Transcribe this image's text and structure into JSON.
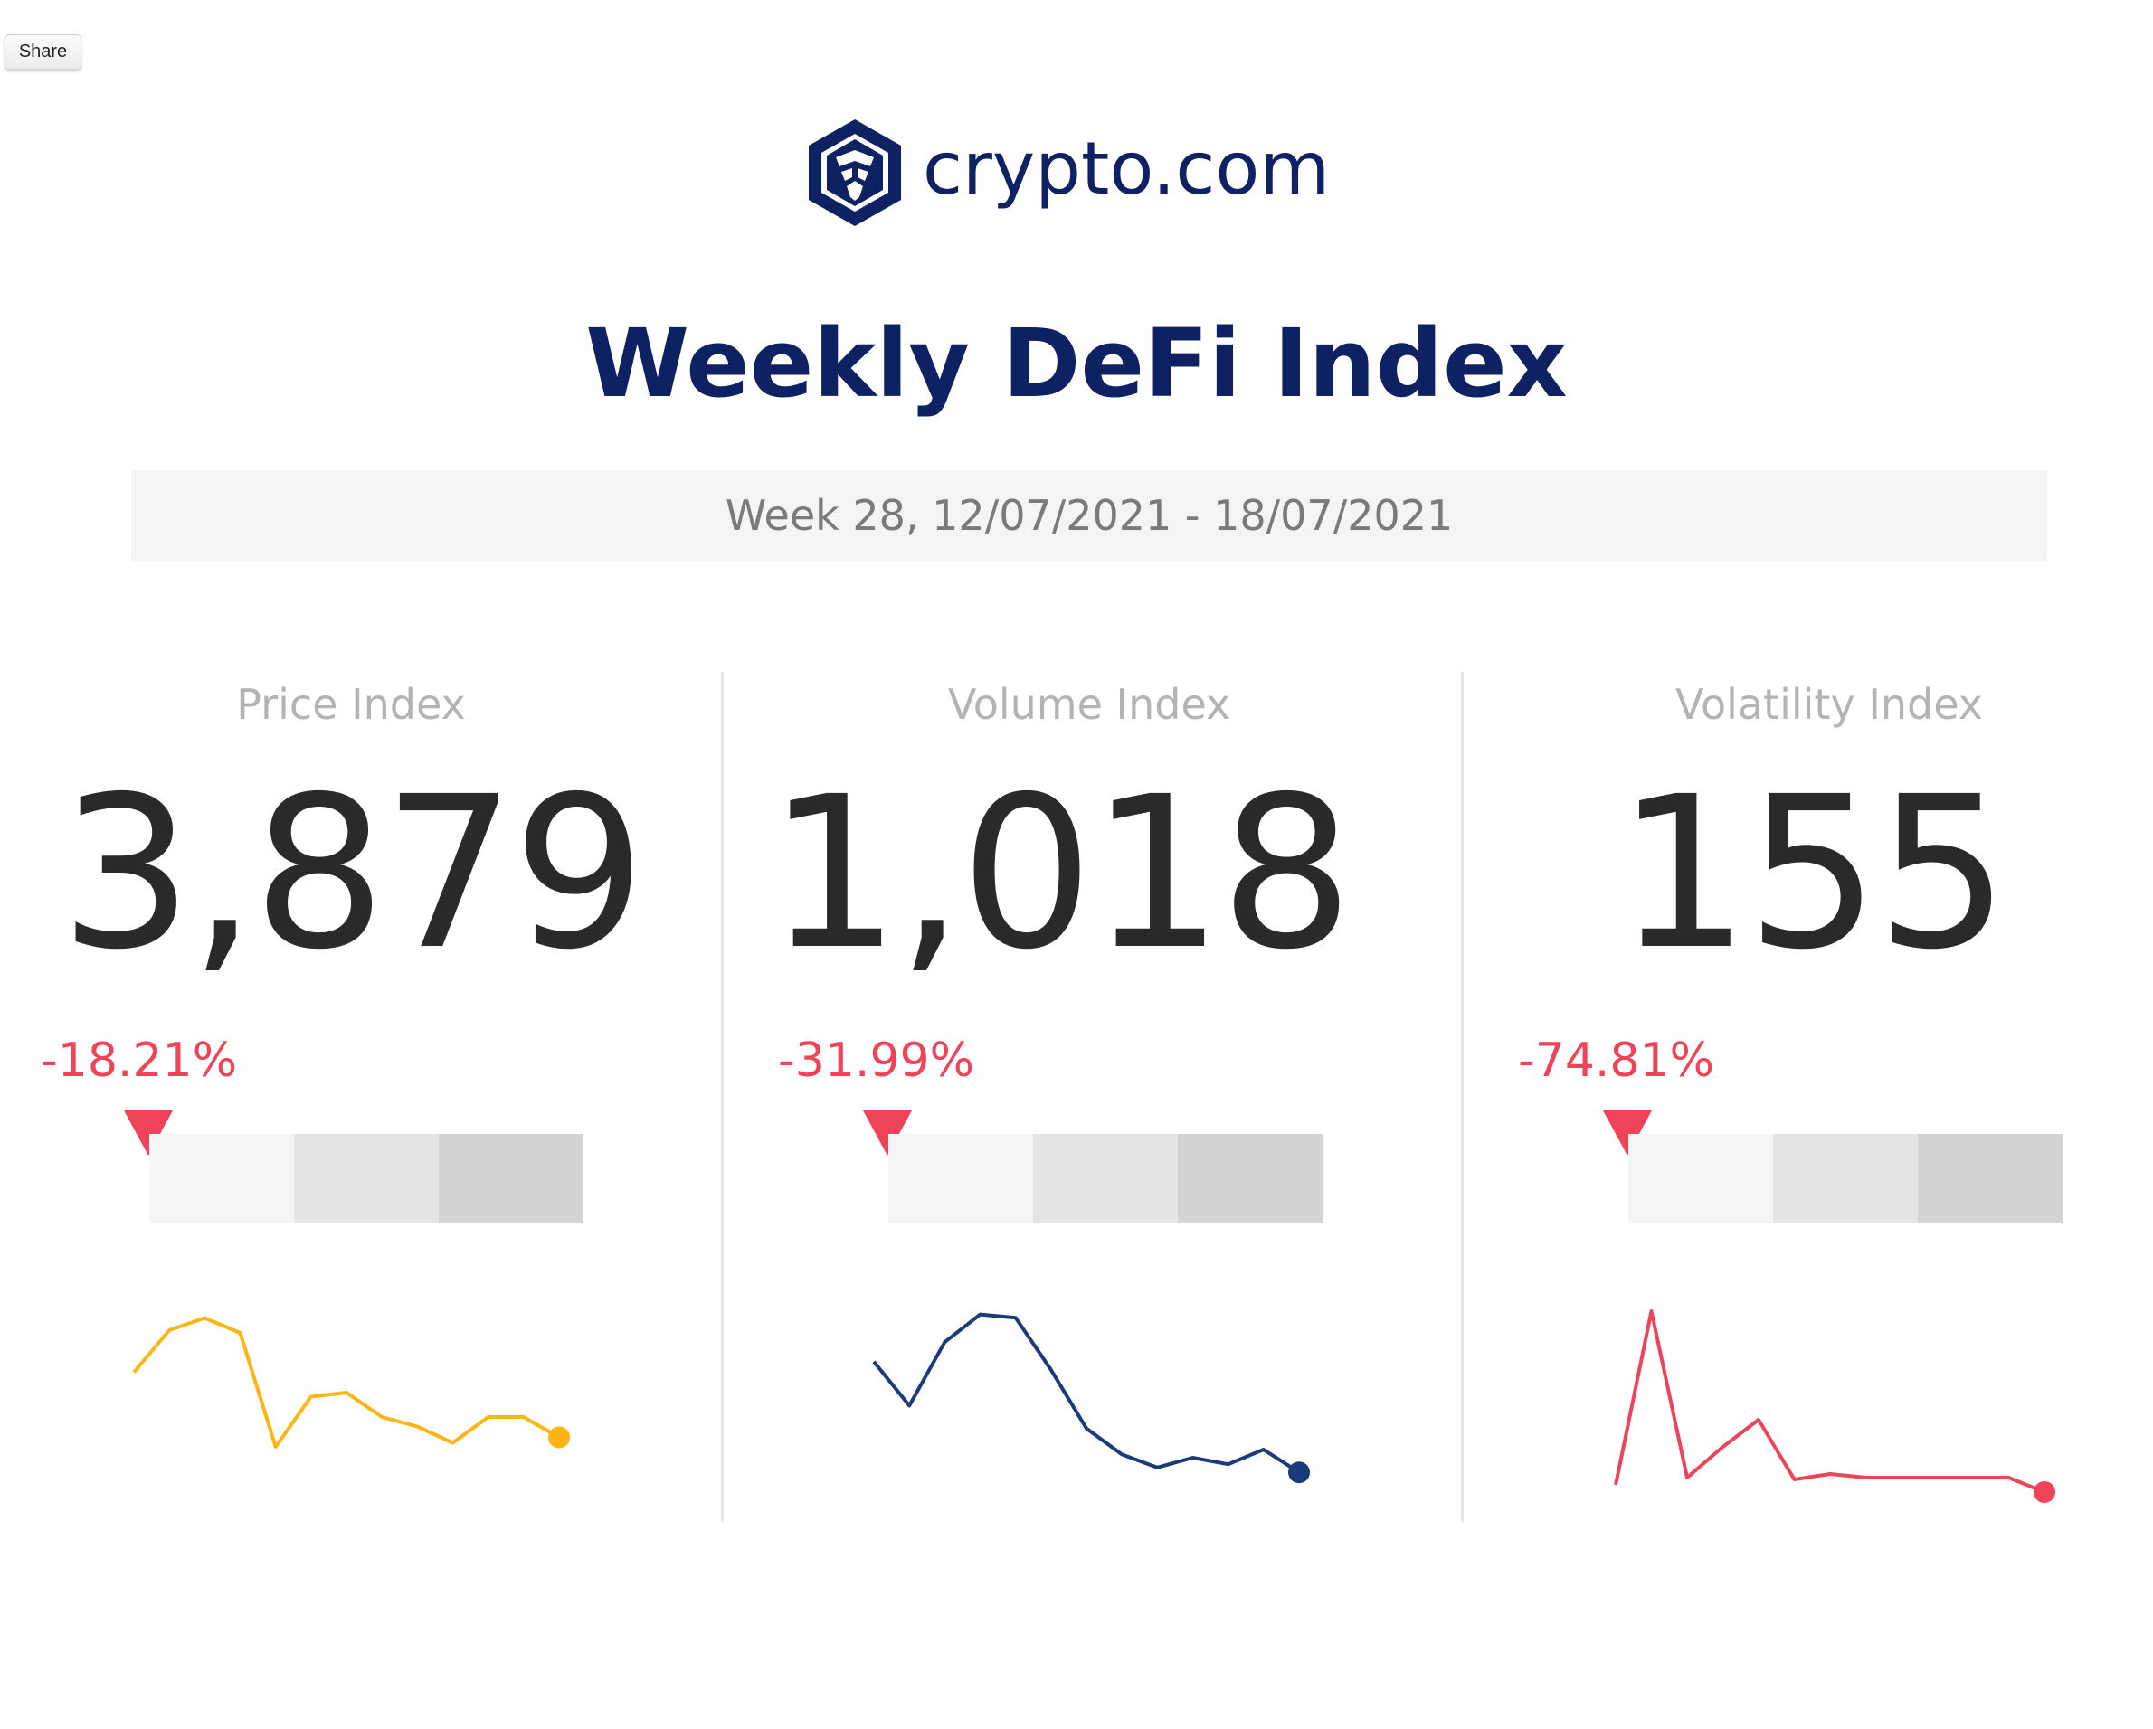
{
  "toolbar": {
    "share_label": "Share"
  },
  "brand": {
    "name": "crypto.com",
    "color": "#0e2162"
  },
  "report": {
    "title": "Weekly DeFi Index",
    "period": "Week 28, 12/07/2021 - 18/07/2021"
  },
  "metrics": [
    {
      "label": "Price Index",
      "value": "3,879",
      "change": "-18.21%",
      "trend": "down",
      "line_color": "#fdb515",
      "sparkline": [
        0.55,
        0.86,
        0.95,
        0.84,
        0.0,
        0.37,
        0.4,
        0.22,
        0.15,
        0.03,
        0.22,
        0.22,
        0.07
      ]
    },
    {
      "label": "Volume Index",
      "value": "1,018",
      "change": "-31.99%",
      "trend": "down",
      "line_color": "#1b3a7a",
      "sparkline": [
        0.69,
        0.42,
        0.81,
        0.98,
        0.96,
        0.64,
        0.28,
        0.12,
        0.04,
        0.1,
        0.06,
        0.15,
        0.01
      ]
    },
    {
      "label": "Volatility Index",
      "value": "155",
      "change": "-74.81%",
      "trend": "down",
      "line_color": "#ee4358",
      "sparkline": [
        0.04,
        1.0,
        0.08,
        0.25,
        0.4,
        0.07,
        0.1,
        0.08,
        0.08,
        0.08,
        0.08,
        0.08,
        0.0
      ]
    }
  ],
  "colors": {
    "change_negative": "#ee4358",
    "label_gray": "#b3b3b3",
    "value_text": "#2a2a2a",
    "scale_segments": [
      "#f4f4f4",
      "#e4e4e4",
      "#d3d3d3"
    ]
  }
}
